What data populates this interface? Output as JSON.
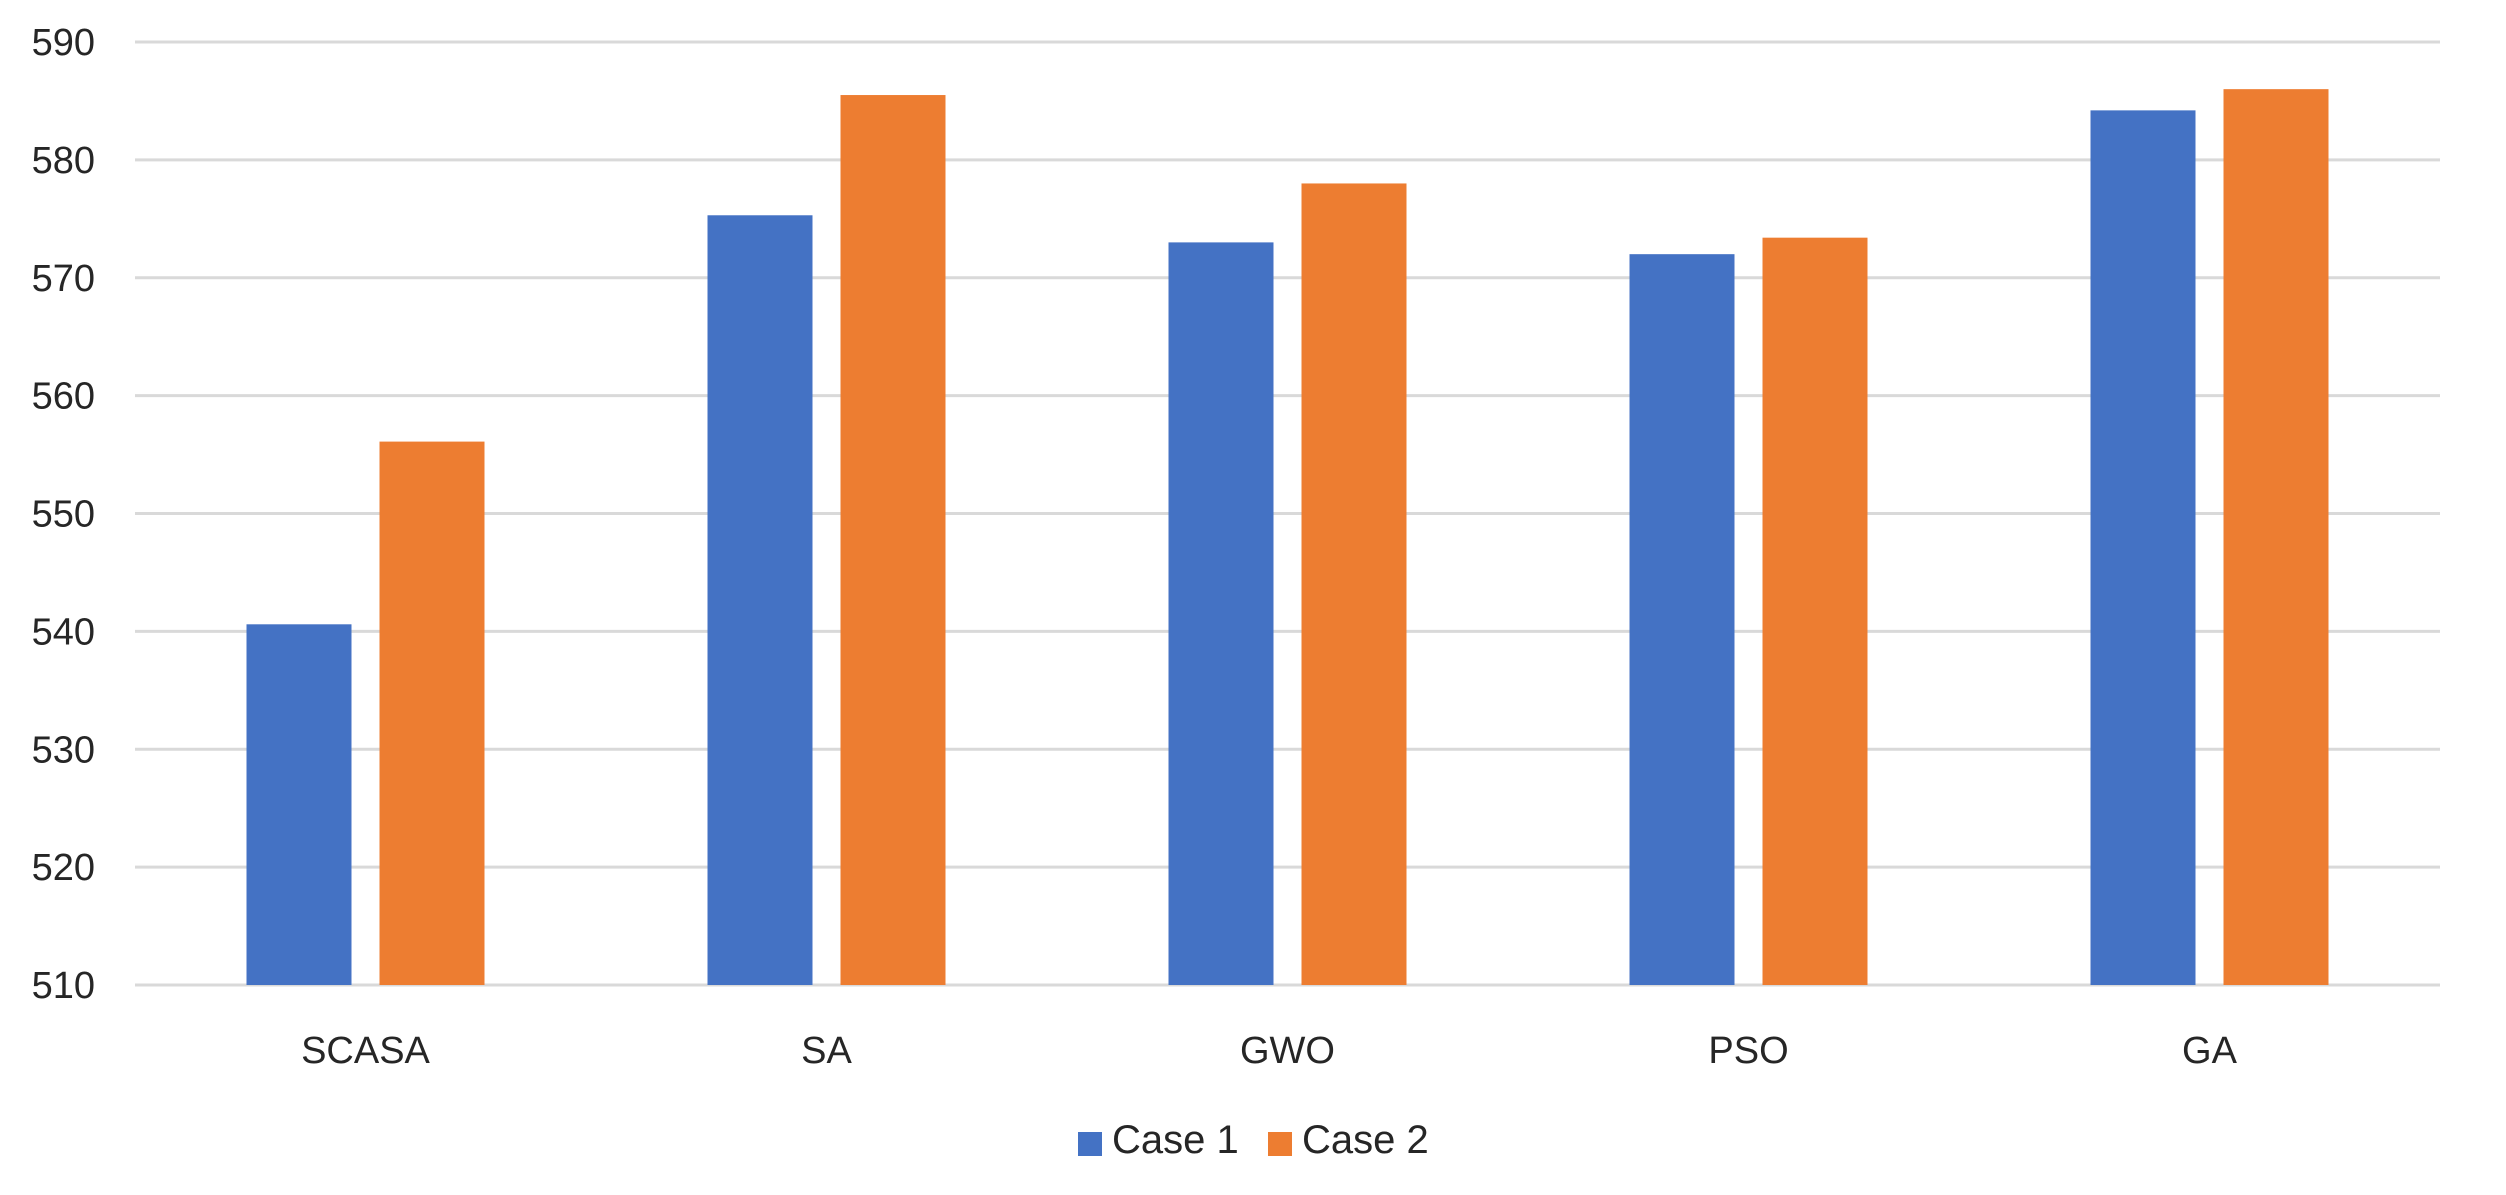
{
  "chart_data": {
    "type": "bar",
    "title": "",
    "xlabel": "",
    "ylabel": "",
    "categories": [
      "SCASA",
      "SA",
      "GWO",
      "PSO",
      "GA"
    ],
    "series": [
      {
        "name": "Case 1",
        "color": "#4472C4",
        "values": [
          540.6,
          575.3,
          573.0,
          572.0,
          584.2
        ]
      },
      {
        "name": "Case 2",
        "color": "#ED7D31",
        "values": [
          556.1,
          585.5,
          578.0,
          573.4,
          586.0
        ]
      }
    ],
    "ylim": [
      510,
      590
    ],
    "yticks": [
      "510",
      "520",
      "530",
      "540",
      "550",
      "560",
      "570",
      "580",
      "590"
    ],
    "grid": true,
    "legend_position": "bottom-center",
    "colors": {
      "gridline": "#D9D9D9",
      "text": "#262626"
    }
  }
}
